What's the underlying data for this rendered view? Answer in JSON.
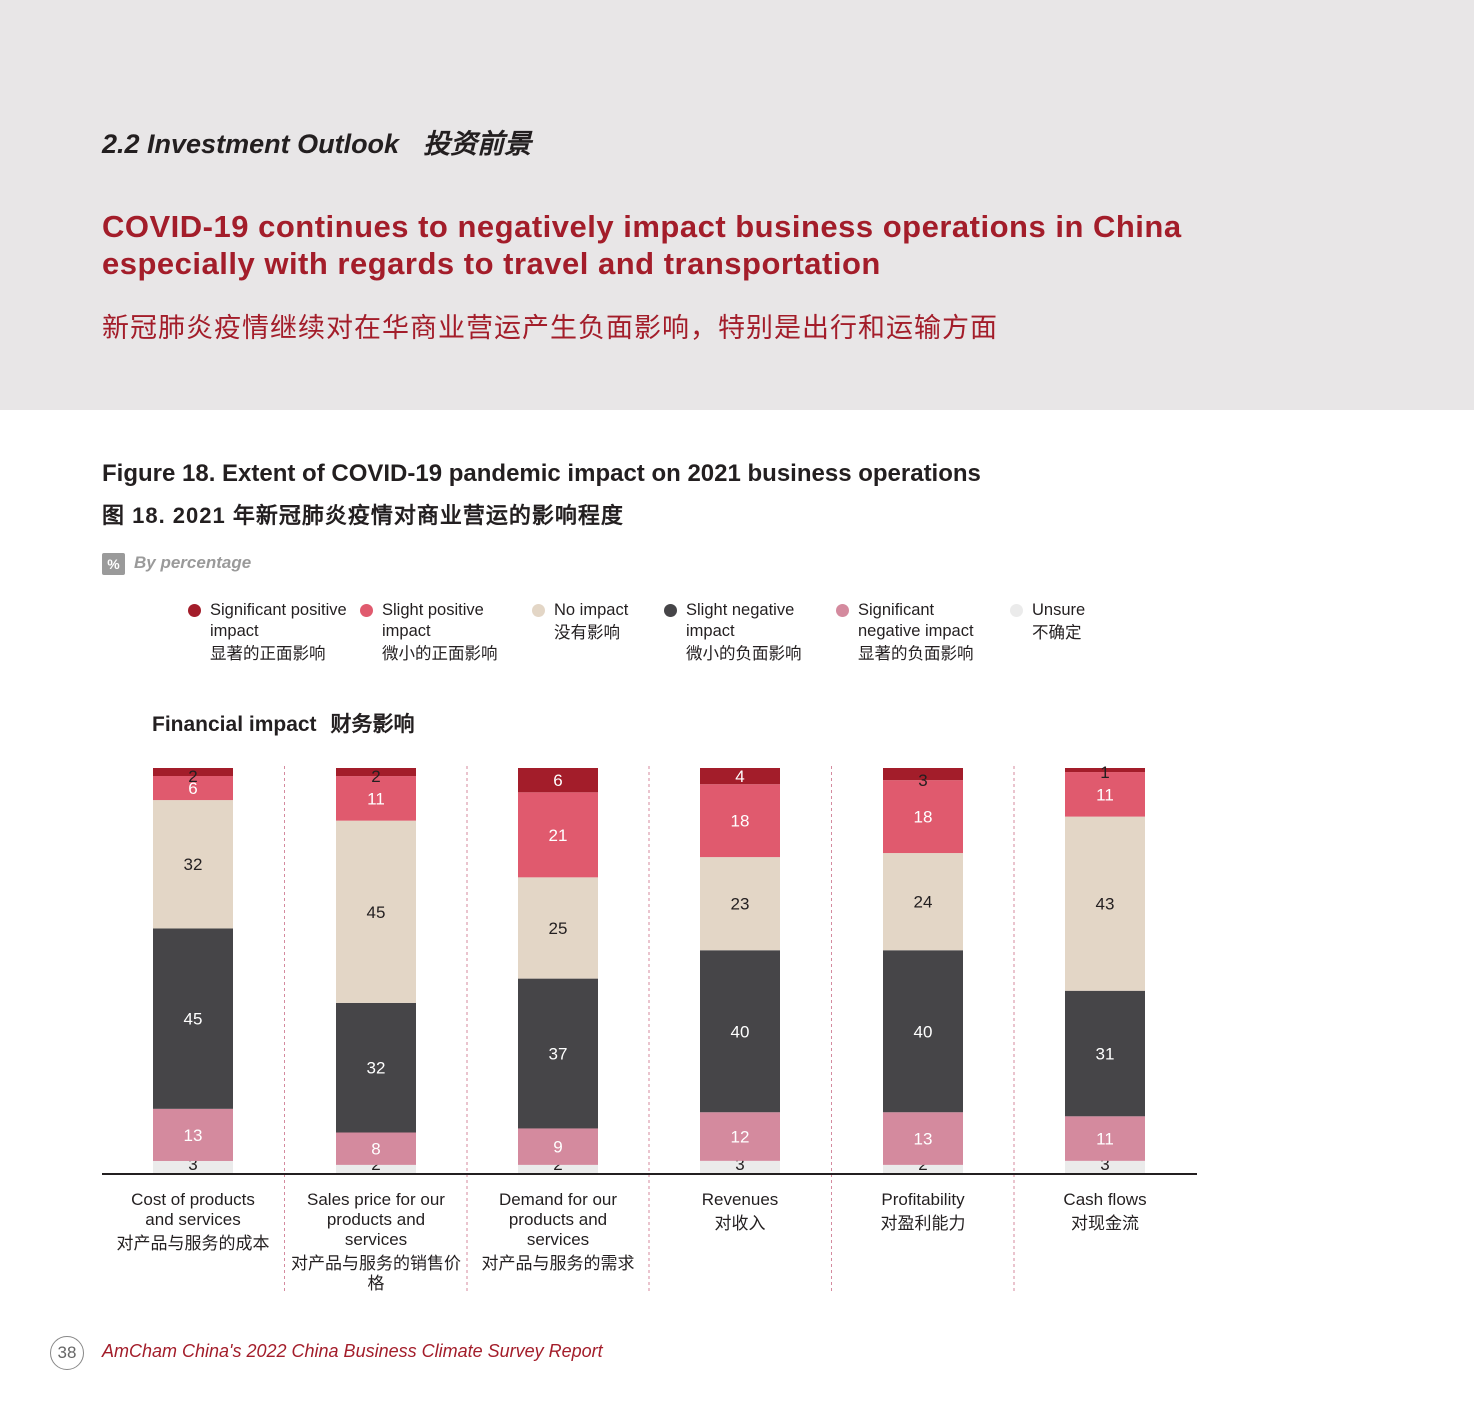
{
  "section": {
    "en": "2.2 Investment Outlook",
    "cn": "投资前景"
  },
  "headline": {
    "en": "COVID-19 continues to negatively impact business operations in China especially with regards to travel and transportation",
    "cn": "新冠肺炎疫情继续对在华商业营运产生负面影响，特别是出行和运输方面"
  },
  "figure": {
    "title_en": "Figure 18. Extent of COVID-19 pandemic impact on 2021 business operations",
    "title_cn": "图 18. 2021 年新冠肺炎疫情对商业营运的影响程度",
    "unit_icon": "%",
    "unit_text": "By percentage"
  },
  "legend": [
    {
      "en": "Significant positive impact",
      "cn": "显著的正面影响",
      "color": "#a31d2a"
    },
    {
      "en": "Slight positive impact",
      "cn": "微小的正面影响",
      "color": "#e05a6e"
    },
    {
      "en": "No impact",
      "cn": "没有影响",
      "color": "#e3d6c6"
    },
    {
      "en": "Slight negative impact",
      "cn": "微小的负面影响",
      "color": "#464548"
    },
    {
      "en": "Significant negative impact",
      "cn": "显著的负面影响",
      "color": "#d48a9e"
    },
    {
      "en": "Unsure",
      "cn": "不确定",
      "color": "#ebebeb"
    }
  ],
  "panel": {
    "title_en": "Financial impact",
    "title_cn": "财务影响"
  },
  "chart_data": {
    "type": "bar",
    "stacked": true,
    "categories": [
      {
        "en": "Cost of products and services",
        "cn": "对产品与服务的成本"
      },
      {
        "en": "Sales price for our products and services",
        "cn": "对产品与服务的销售价格"
      },
      {
        "en": "Demand for our products and services",
        "cn": "对产品与服务的需求"
      },
      {
        "en": "Revenues",
        "cn": "对收入"
      },
      {
        "en": "Profitability",
        "cn": "对盈利能力"
      },
      {
        "en": "Cash flows",
        "cn": "对现金流"
      }
    ],
    "series": [
      {
        "name": "Unsure",
        "values": [
          3,
          2,
          2,
          3,
          2,
          3
        ]
      },
      {
        "name": "Significant negative impact",
        "values": [
          13,
          8,
          9,
          12,
          13,
          11
        ]
      },
      {
        "name": "Slight negative impact",
        "values": [
          45,
          32,
          37,
          40,
          40,
          31
        ]
      },
      {
        "name": "No impact",
        "values": [
          32,
          45,
          25,
          23,
          24,
          43
        ]
      },
      {
        "name": "Slight positive impact",
        "values": [
          6,
          11,
          21,
          18,
          18,
          11
        ]
      },
      {
        "name": "Significant positive impact",
        "values": [
          2,
          2,
          6,
          4,
          3,
          1
        ]
      }
    ],
    "ylim": [
      0,
      100
    ],
    "grid": false,
    "legend_position": "top"
  },
  "footer": {
    "page": "38",
    "text": "AmCham China's 2022 China Business Climate Survey Report"
  }
}
